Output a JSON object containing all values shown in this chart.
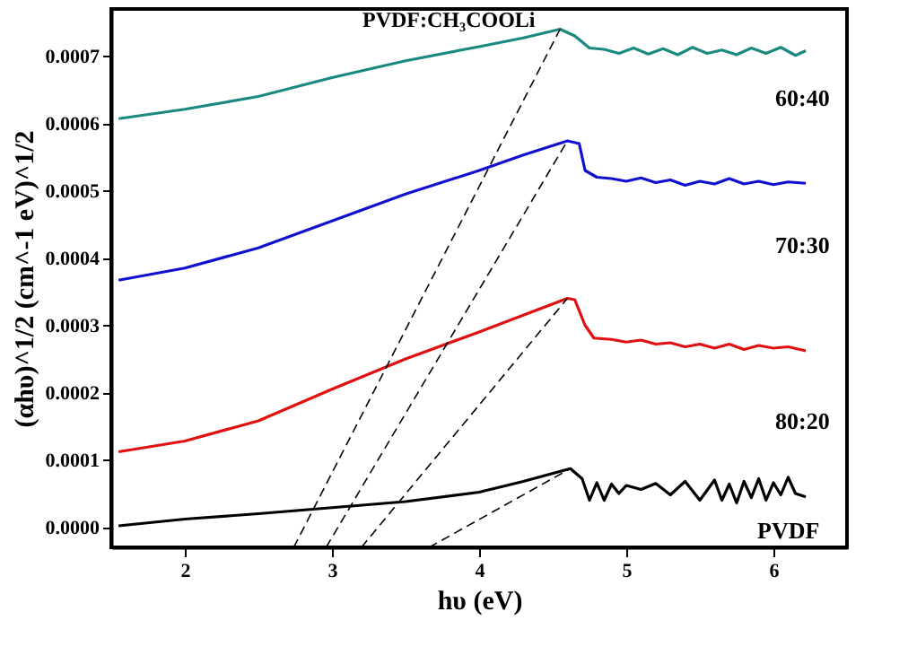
{
  "chart_data": {
    "type": "line",
    "xlabel": "hυ (eV)",
    "ylabel": "(αhυ)^1/2 (cm^-1 eV)^1/2",
    "xlim": [
      1.5,
      6.5
    ],
    "ylim": [
      -3e-05,
      0.00077
    ],
    "xticks": [
      2,
      3,
      4,
      5,
      6
    ],
    "yticks": [
      {
        "value": 0,
        "label": "0.0000"
      },
      {
        "value": 0.0001,
        "label": "0.0001"
      },
      {
        "value": 0.0002,
        "label": "0.0002"
      },
      {
        "value": 0.0003,
        "label": "0.0003"
      },
      {
        "value": 0.0004,
        "label": "0.0004"
      },
      {
        "value": 0.0005,
        "label": "0.0005"
      },
      {
        "value": 0.0006,
        "label": "0.0006"
      },
      {
        "value": 0.0007,
        "label": "0.0007"
      }
    ],
    "grid": false,
    "marker": "none",
    "series": [
      {
        "color": "#1a8a80",
        "line_style": "solid",
        "x": [
          1.55,
          2.0,
          2.5,
          3.0,
          3.5,
          4.0,
          4.3,
          4.55,
          4.65,
          4.75,
          4.85,
          4.95,
          5.05,
          5.15,
          5.25,
          5.35,
          5.45,
          5.55,
          5.65,
          5.75,
          5.85,
          5.95,
          6.05,
          6.15,
          6.22
        ],
        "values": [
          0.000607,
          0.000621,
          0.00064,
          0.000668,
          0.000693,
          0.000714,
          0.000727,
          0.00074,
          0.00073,
          0.000712,
          0.00071,
          0.000704,
          0.000712,
          0.000703,
          0.000711,
          0.000702,
          0.000713,
          0.000704,
          0.000709,
          0.000702,
          0.000712,
          0.000704,
          0.000713,
          0.000701,
          0.000708
        ]
      },
      {
        "color": "#1010d0",
        "line_style": "solid",
        "x": [
          1.55,
          2.0,
          2.5,
          3.0,
          3.5,
          4.0,
          4.3,
          4.6,
          4.68,
          4.72,
          4.8,
          4.9,
          5.0,
          5.1,
          5.2,
          5.3,
          5.4,
          5.5,
          5.6,
          5.7,
          5.8,
          5.9,
          6.0,
          6.1,
          6.22
        ],
        "values": [
          0.000367,
          0.000385,
          0.000415,
          0.000455,
          0.000495,
          0.00053,
          0.000553,
          0.000574,
          0.00057,
          0.00053,
          0.00052,
          0.000518,
          0.000514,
          0.000519,
          0.000512,
          0.000516,
          0.000508,
          0.000514,
          0.00051,
          0.000518,
          0.00051,
          0.000514,
          0.000509,
          0.000513,
          0.000511
        ]
      },
      {
        "color": "#e01010",
        "line_style": "solid",
        "x": [
          1.55,
          2.0,
          2.5,
          3.0,
          3.5,
          4.0,
          4.3,
          4.6,
          4.65,
          4.72,
          4.78,
          4.9,
          5.0,
          5.1,
          5.2,
          5.3,
          5.4,
          5.5,
          5.6,
          5.7,
          5.8,
          5.9,
          6.0,
          6.1,
          6.22
        ],
        "values": [
          0.000112,
          0.000128,
          0.000158,
          0.000205,
          0.00025,
          0.00029,
          0.000315,
          0.00034,
          0.000338,
          0.0003,
          0.000281,
          0.000279,
          0.000275,
          0.000278,
          0.000272,
          0.000274,
          0.000268,
          0.000272,
          0.000266,
          0.000272,
          0.000264,
          0.00027,
          0.000266,
          0.000268,
          0.000262
        ]
      },
      {
        "color": "#000000",
        "line_style": "solid",
        "x": [
          1.55,
          2.0,
          2.5,
          3.0,
          3.5,
          4.0,
          4.3,
          4.62,
          4.7,
          4.75,
          4.8,
          4.85,
          4.9,
          4.95,
          5.0,
          5.1,
          5.2,
          5.3,
          5.4,
          5.5,
          5.6,
          5.65,
          5.7,
          5.75,
          5.8,
          5.85,
          5.9,
          5.95,
          6.0,
          6.05,
          6.1,
          6.15,
          6.22
        ],
        "values": [
          2e-06,
          1.2e-05,
          2e-05,
          2.9e-05,
          3.8e-05,
          5.2e-05,
          6.8e-05,
          8.7e-05,
          7.2e-05,
          4e-05,
          6.6e-05,
          4e-05,
          6.4e-05,
          5e-05,
          6.2e-05,
          5.6e-05,
          6.5e-05,
          4.8e-05,
          6.8e-05,
          4e-05,
          7e-05,
          4e-05,
          6.4e-05,
          3.6e-05,
          6.8e-05,
          4.4e-05,
          7.2e-05,
          4e-05,
          6.6e-05,
          4.8e-05,
          7.4e-05,
          5e-05,
          4.5e-05
        ]
      },
      {
        "color": "#000000",
        "line_style": "dashed",
        "x": [
          2.74,
          4.55
        ],
        "values": [
          -3e-05,
          0.00074
        ]
      },
      {
        "color": "#000000",
        "line_style": "dashed",
        "x": [
          2.96,
          4.6
        ],
        "values": [
          -3e-05,
          0.000574
        ]
      },
      {
        "color": "#000000",
        "line_style": "dashed",
        "x": [
          3.2,
          4.6
        ],
        "values": [
          -3e-05,
          0.00034
        ]
      },
      {
        "color": "#000000",
        "line_style": "dashed",
        "x": [
          3.66,
          4.62
        ],
        "values": [
          -3e-05,
          8.7e-05
        ]
      }
    ],
    "annotations": [
      "PVDF:CH₃COOLi",
      "60:40",
      "70:30",
      "80:20",
      "PVDF"
    ]
  }
}
